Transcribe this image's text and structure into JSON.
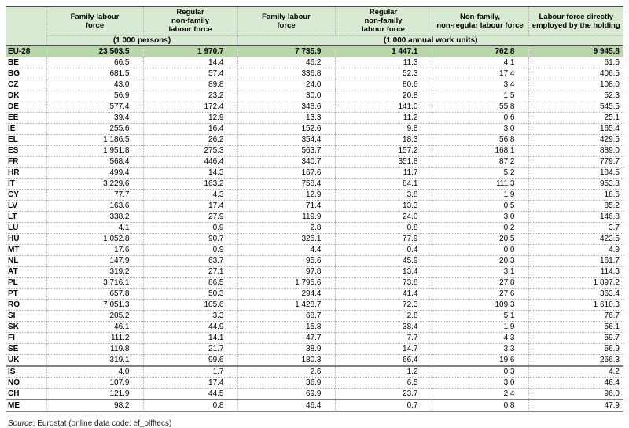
{
  "colors": {
    "header_bg": "#d9ead3",
    "total_row_bg": "#b7d7a8",
    "outer_border": "#4a4a4a",
    "group_border": "#7f7f7f",
    "dotted_border": "#b3b3b3"
  },
  "chart_data": {
    "type": "table",
    "columns": [
      "Family labour\nforce",
      "Regular\nnon-family\nlabour force",
      "Family labour\nforce",
      "Regular\nnon-family\nlabour force",
      "Non-family,\nnon-regular labour force",
      "Labour force directly\nemployed by the holding"
    ],
    "unit_groups": [
      {
        "label": "(1 000 persons)",
        "span": 2
      },
      {
        "label": "(1 000 annual work units)",
        "span": 4
      }
    ],
    "total_row_code": "EU-28",
    "group_separators_after": [
      "UK",
      "CH",
      "ME"
    ],
    "rows": [
      {
        "code": "EU-28",
        "values": [
          "23 503.5",
          "1 970.7",
          "7 735.9",
          "1 447.1",
          "762.8",
          "9 945.8"
        ]
      },
      {
        "code": "BE",
        "values": [
          "66.5",
          "14.4",
          "46.2",
          "11.3",
          "4.1",
          "61.6"
        ]
      },
      {
        "code": "BG",
        "values": [
          "681.5",
          "57.4",
          "336.8",
          "52.3",
          "17.4",
          "406.5"
        ]
      },
      {
        "code": "CZ",
        "values": [
          "43.0",
          "89.8",
          "24.0",
          "80.6",
          "3.4",
          "108.0"
        ]
      },
      {
        "code": "DK",
        "values": [
          "56.9",
          "23.2",
          "30.0",
          "20.8",
          "1.5",
          "52.3"
        ]
      },
      {
        "code": "DE",
        "values": [
          "577.4",
          "172.4",
          "348.6",
          "141.0",
          "55.8",
          "545.5"
        ]
      },
      {
        "code": "EE",
        "values": [
          "39.4",
          "12.9",
          "13.3",
          "11.2",
          "0.6",
          "25.1"
        ]
      },
      {
        "code": "IE",
        "values": [
          "255.6",
          "16.4",
          "152.6",
          "9.8",
          "3.0",
          "165.4"
        ]
      },
      {
        "code": "EL",
        "values": [
          "1 186.5",
          "26.2",
          "354.4",
          "18.3",
          "56.8",
          "429.5"
        ]
      },
      {
        "code": "ES",
        "values": [
          "1 951.8",
          "275.3",
          "563.7",
          "157.2",
          "168.1",
          "889.0"
        ]
      },
      {
        "code": "FR",
        "values": [
          "568.4",
          "446.4",
          "340.7",
          "351.8",
          "87.2",
          "779.7"
        ]
      },
      {
        "code": "HR",
        "values": [
          "499.4",
          "14.3",
          "167.6",
          "11.7",
          "5.2",
          "184.5"
        ]
      },
      {
        "code": "IT",
        "values": [
          "3 229.6",
          "163.2",
          "758.4",
          "84.1",
          "111.3",
          "953.8"
        ]
      },
      {
        "code": "CY",
        "values": [
          "77.7",
          "4.3",
          "12.9",
          "3.8",
          "1.9",
          "18.6"
        ]
      },
      {
        "code": "LV",
        "values": [
          "163.6",
          "17.4",
          "71.4",
          "13.3",
          "0.5",
          "85.2"
        ]
      },
      {
        "code": "LT",
        "values": [
          "338.2",
          "27.9",
          "119.9",
          "24.0",
          "3.0",
          "146.8"
        ]
      },
      {
        "code": "LU",
        "values": [
          "4.1",
          "0.9",
          "2.8",
          "0.8",
          "0.2",
          "3.7"
        ]
      },
      {
        "code": "HU",
        "values": [
          "1 052.8",
          "90.7",
          "325.1",
          "77.9",
          "20.5",
          "423.5"
        ]
      },
      {
        "code": "MT",
        "values": [
          "17.6",
          "0.9",
          "4.4",
          "0.4",
          "0.0",
          "4.9"
        ]
      },
      {
        "code": "NL",
        "values": [
          "147.9",
          "63.7",
          "95.6",
          "45.9",
          "20.3",
          "161.7"
        ]
      },
      {
        "code": "AT",
        "values": [
          "319.2",
          "27.1",
          "97.8",
          "13.4",
          "3.1",
          "114.3"
        ]
      },
      {
        "code": "PL",
        "values": [
          "3 716.1",
          "86.5",
          "1 795.6",
          "73.8",
          "27.8",
          "1 897.2"
        ]
      },
      {
        "code": "PT",
        "values": [
          "657.8",
          "50.3",
          "294.4",
          "41.4",
          "27.6",
          "363.4"
        ]
      },
      {
        "code": "RO",
        "values": [
          "7 051.3",
          "105.6",
          "1 428.7",
          "72.3",
          "109.3",
          "1 610.3"
        ]
      },
      {
        "code": "SI",
        "values": [
          "205.2",
          "3.3",
          "68.7",
          "2.8",
          "5.1",
          "76.7"
        ]
      },
      {
        "code": "SK",
        "values": [
          "46.1",
          "44.9",
          "15.8",
          "38.4",
          "1.9",
          "56.1"
        ]
      },
      {
        "code": "FI",
        "values": [
          "111.2",
          "14.1",
          "47.7",
          "7.7",
          "4.3",
          "59.7"
        ]
      },
      {
        "code": "SE",
        "values": [
          "119.8",
          "21.7",
          "38.9",
          "14.7",
          "3.3",
          "56.9"
        ]
      },
      {
        "code": "UK",
        "values": [
          "319.1",
          "99.6",
          "180.3",
          "66.4",
          "19.6",
          "266.3"
        ]
      },
      {
        "code": "IS",
        "values": [
          "4.0",
          "1.7",
          "2.6",
          "1.2",
          "0.3",
          "4.2"
        ]
      },
      {
        "code": "NO",
        "values": [
          "107.9",
          "17.4",
          "36.9",
          "6.5",
          "3.0",
          "46.4"
        ]
      },
      {
        "code": "CH",
        "values": [
          "121.9",
          "44.5",
          "69.9",
          "23.7",
          "2.4",
          "96.0"
        ]
      },
      {
        "code": "ME",
        "values": [
          "98.2",
          "0.8",
          "46.4",
          "0.7",
          "0.8",
          "47.9"
        ]
      }
    ],
    "source_prefix": "Source",
    "source_rest": ": Eurostat (online data code: ef_olfftecs)"
  }
}
